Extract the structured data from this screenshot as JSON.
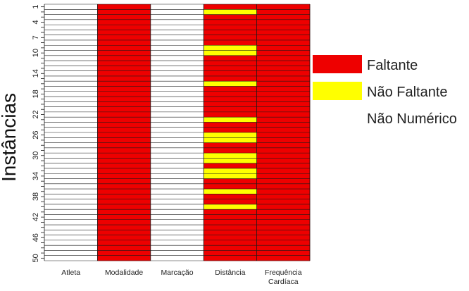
{
  "chart_data": {
    "type": "heatmap",
    "ylabel": "Instâncias",
    "columns": [
      "Atleta",
      "Modalidade",
      "Marcação",
      "Distância",
      "Frequência Cardíaca"
    ],
    "column_label_lines": [
      [
        "Atleta"
      ],
      [
        "Modalidade"
      ],
      [
        "Marcação"
      ],
      [
        "Distância"
      ],
      [
        "Frequência",
        "Cardíaca"
      ]
    ],
    "rows": 50,
    "row_tick_labels": [
      1,
      4,
      7,
      10,
      14,
      18,
      22,
      26,
      30,
      34,
      38,
      42,
      46,
      50
    ],
    "categories": [
      {
        "code": "F",
        "label": "Faltante",
        "color": "#ee0000"
      },
      {
        "code": "N",
        "label": "Não Faltante",
        "color": "#ffff00"
      },
      {
        "code": "X",
        "label": "Não Numérico",
        "color": "#ffffff"
      }
    ],
    "column_states": {
      "Atleta": "all X",
      "Modalidade": "all F",
      "Marcação": "all X",
      "Distância": "F except N at rows 2, 9, 10, 16, 23, 26, 27, 30, 31, 33, 34, 37, 40",
      "Frequência Cardíaca": "all F"
    },
    "cells": [
      [
        "X",
        "X",
        "X",
        "X",
        "X",
        "X",
        "X",
        "X",
        "X",
        "X",
        "X",
        "X",
        "X",
        "X",
        "X",
        "X",
        "X",
        "X",
        "X",
        "X",
        "X",
        "X",
        "X",
        "X",
        "X",
        "X",
        "X",
        "X",
        "X",
        "X",
        "X",
        "X",
        "X",
        "X",
        "X",
        "X",
        "X",
        "X",
        "X",
        "X",
        "X",
        "X",
        "X",
        "X",
        "X",
        "X",
        "X",
        "X",
        "X",
        "X"
      ],
      [
        "F",
        "F",
        "F",
        "F",
        "F",
        "F",
        "F",
        "F",
        "F",
        "F",
        "F",
        "F",
        "F",
        "F",
        "F",
        "F",
        "F",
        "F",
        "F",
        "F",
        "F",
        "F",
        "F",
        "F",
        "F",
        "F",
        "F",
        "F",
        "F",
        "F",
        "F",
        "F",
        "F",
        "F",
        "F",
        "F",
        "F",
        "F",
        "F",
        "F",
        "F",
        "F",
        "F",
        "F",
        "F",
        "F",
        "F",
        "F",
        "F",
        "F"
      ],
      [
        "X",
        "X",
        "X",
        "X",
        "X",
        "X",
        "X",
        "X",
        "X",
        "X",
        "X",
        "X",
        "X",
        "X",
        "X",
        "X",
        "X",
        "X",
        "X",
        "X",
        "X",
        "X",
        "X",
        "X",
        "X",
        "X",
        "X",
        "X",
        "X",
        "X",
        "X",
        "X",
        "X",
        "X",
        "X",
        "X",
        "X",
        "X",
        "X",
        "X",
        "X",
        "X",
        "X",
        "X",
        "X",
        "X",
        "X",
        "X",
        "X",
        "X"
      ],
      [
        "F",
        "N",
        "F",
        "F",
        "F",
        "F",
        "F",
        "F",
        "N",
        "N",
        "F",
        "F",
        "F",
        "F",
        "F",
        "N",
        "F",
        "F",
        "F",
        "F",
        "F",
        "F",
        "N",
        "F",
        "F",
        "N",
        "N",
        "F",
        "F",
        "N",
        "N",
        "F",
        "N",
        "N",
        "F",
        "F",
        "N",
        "F",
        "F",
        "N",
        "F",
        "F",
        "F",
        "F",
        "F",
        "F",
        "F",
        "F",
        "F",
        "F"
      ],
      [
        "F",
        "F",
        "F",
        "F",
        "F",
        "F",
        "F",
        "F",
        "F",
        "F",
        "F",
        "F",
        "F",
        "F",
        "F",
        "F",
        "F",
        "F",
        "F",
        "F",
        "F",
        "F",
        "F",
        "F",
        "F",
        "F",
        "F",
        "F",
        "F",
        "F",
        "F",
        "F",
        "F",
        "F",
        "F",
        "F",
        "F",
        "F",
        "F",
        "F",
        "F",
        "F",
        "F",
        "F",
        "F",
        "F",
        "F",
        "F",
        "F",
        "F"
      ]
    ]
  }
}
